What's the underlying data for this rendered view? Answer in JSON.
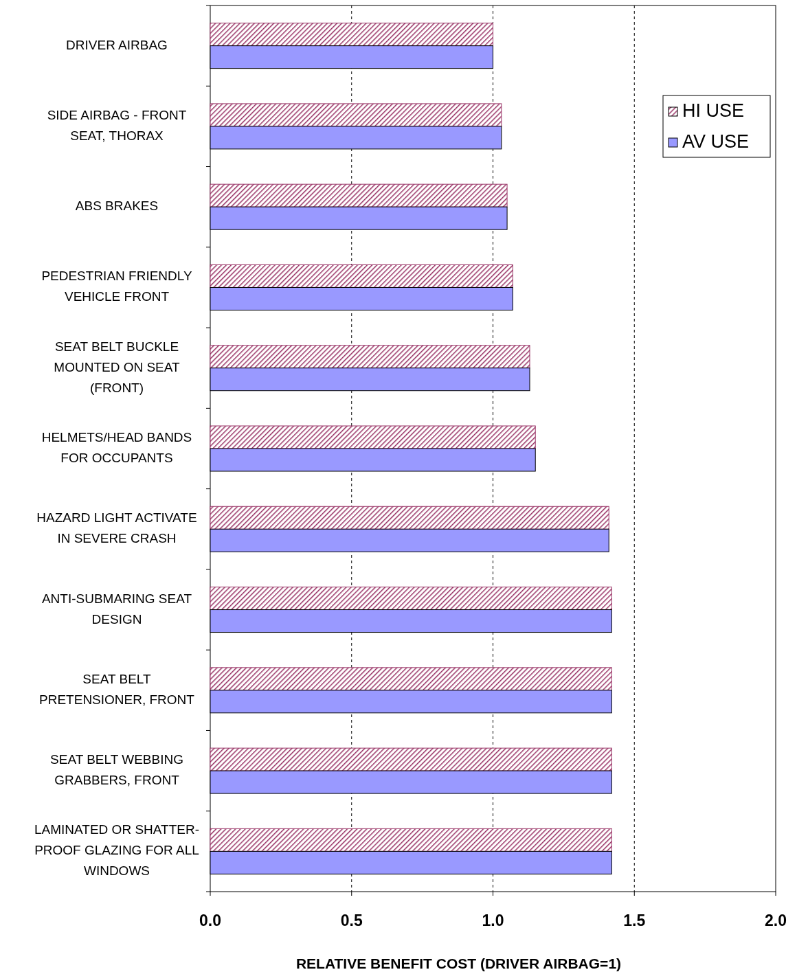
{
  "chart_data": {
    "type": "bar",
    "orientation": "horizontal",
    "xlabel": "RELATIVE BENEFIT COST (DRIVER AIRBAG=1)",
    "categories": [
      "DRIVER AIRBAG",
      "SIDE AIRBAG - FRONT SEAT, THORAX",
      "ABS BRAKES",
      "PEDESTRIAN FRIENDLY VEHICLE FRONT",
      "SEAT BELT BUCKLE MOUNTED ON SEAT (FRONT)",
      "HELMETS/HEAD BANDS FOR OCCUPANTS",
      "HAZARD LIGHT ACTIVATE IN SEVERE CRASH",
      "ANTI-SUBMARING SEAT DESIGN",
      "SEAT BELT PRETENSIONER, FRONT",
      "SEAT BELT WEBBING GRABBERS, FRONT",
      "LAMINATED OR SHATTER-PROOF GLAZING FOR ALL WINDOWS"
    ],
    "series": [
      {
        "name": "HI USE",
        "color": "#993366",
        "values": [
          1.0,
          1.03,
          1.05,
          1.07,
          1.13,
          1.15,
          1.41,
          1.42,
          1.42,
          1.42,
          1.42
        ]
      },
      {
        "name": "AV USE",
        "color": "#9999ff",
        "values": [
          1.0,
          1.03,
          1.05,
          1.07,
          1.13,
          1.15,
          1.41,
          1.42,
          1.42,
          1.42,
          1.42
        ]
      }
    ],
    "xlim": [
      0,
      2
    ],
    "xticks": [
      {
        "value": 0,
        "label": "0.0"
      },
      0.5,
      {
        "value": 1,
        "label": "1.0"
      },
      1.5,
      {
        "value": 2,
        "label": "2.0"
      }
    ],
    "grid": "x",
    "legend": "top right"
  }
}
